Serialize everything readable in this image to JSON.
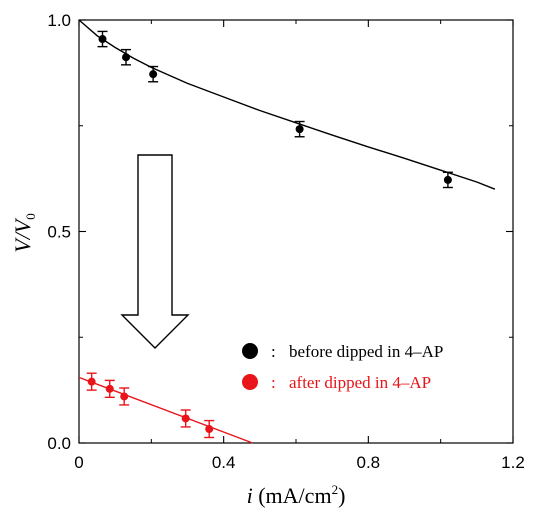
{
  "chart_data": {
    "type": "scatter",
    "title": "",
    "xlabel": {
      "var": "i",
      "unit_pre": "(mA/cm",
      "unit_sup": "2",
      "unit_post": ")"
    },
    "ylabel": {
      "var": "V/V",
      "sub": "0"
    },
    "xlim": [
      0,
      1.2
    ],
    "ylim": [
      0,
      1.0
    ],
    "xticks": [
      0,
      0.4,
      0.8,
      1.2
    ],
    "xtick_labels": [
      "0",
      "0.4",
      "0.8",
      "1.2"
    ],
    "yticks": [
      0,
      0.5,
      1.0
    ],
    "ytick_labels": [
      "0.0",
      "0.5",
      "1.0"
    ],
    "grid": false,
    "legend_position": "lower-right",
    "series": [
      {
        "label": "before dipped in 4–AP",
        "color": "#000000",
        "points": [
          {
            "x": 0.065,
            "y": 0.955,
            "err": 0.018
          },
          {
            "x": 0.13,
            "y": 0.912,
            "err": 0.018
          },
          {
            "x": 0.205,
            "y": 0.872,
            "err": 0.018
          },
          {
            "x": 0.61,
            "y": 0.742,
            "err": 0.018
          },
          {
            "x": 1.02,
            "y": 0.622,
            "err": 0.018
          }
        ],
        "fit": [
          [
            0.0,
            1.0
          ],
          [
            0.05,
            0.963
          ],
          [
            0.1,
            0.935
          ],
          [
            0.15,
            0.91
          ],
          [
            0.2,
            0.888
          ],
          [
            0.3,
            0.85
          ],
          [
            0.4,
            0.818
          ],
          [
            0.5,
            0.786
          ],
          [
            0.6,
            0.757
          ],
          [
            0.7,
            0.728
          ],
          [
            0.8,
            0.7
          ],
          [
            0.9,
            0.673
          ],
          [
            1.0,
            0.645
          ],
          [
            1.1,
            0.617
          ],
          [
            1.15,
            0.6
          ]
        ]
      },
      {
        "label": "after dipped in 4–AP",
        "color": "#e8141a",
        "points": [
          {
            "x": 0.035,
            "y": 0.145,
            "err": 0.02
          },
          {
            "x": 0.085,
            "y": 0.128,
            "err": 0.02
          },
          {
            "x": 0.125,
            "y": 0.11,
            "err": 0.02
          },
          {
            "x": 0.295,
            "y": 0.058,
            "err": 0.02
          },
          {
            "x": 0.36,
            "y": 0.033,
            "err": 0.02
          }
        ],
        "fit": [
          [
            0.0,
            0.155
          ],
          [
            0.48,
            0.0
          ]
        ]
      }
    ],
    "annotation": "hollow downward arrow from the upper series toward the lower series"
  }
}
